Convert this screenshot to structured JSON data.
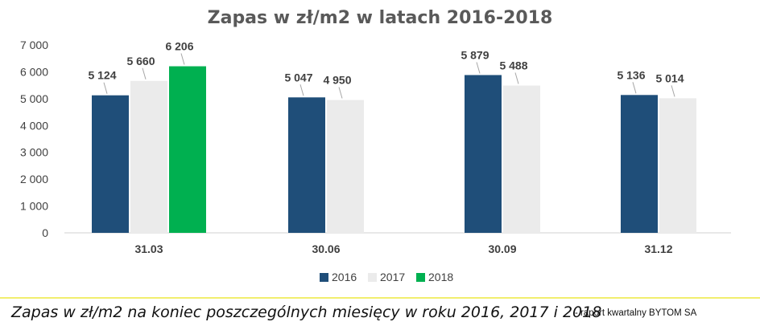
{
  "chart_data": {
    "type": "bar",
    "title": "Zapas w zł/m2 w latach 2016-2018",
    "categories": [
      "31.03",
      "30.06",
      "30.09",
      "31.12"
    ],
    "series": [
      {
        "name": "2016",
        "color": "#1f4e79",
        "values": [
          5124,
          5047,
          5879,
          5136
        ],
        "labels": [
          "5 124",
          "5 047",
          "5 879",
          "5 136"
        ]
      },
      {
        "name": "2017",
        "color": "#ebebeb",
        "values": [
          5660,
          4950,
          5488,
          5014
        ],
        "labels": [
          "5 660",
          "4 950",
          "5 488",
          "5 014"
        ]
      },
      {
        "name": "2018",
        "color": "#00b050",
        "values": [
          6206,
          null,
          null,
          null
        ],
        "labels": [
          "6 206",
          "",
          "",
          ""
        ]
      }
    ],
    "ylim": [
      0,
      7000
    ],
    "yticks": [
      0,
      1000,
      2000,
      3000,
      4000,
      5000,
      6000,
      7000
    ],
    "ytick_labels": [
      "0",
      "1 000",
      "2 000",
      "3 000",
      "4 000",
      "5 000",
      "6 000",
      "7 000"
    ],
    "grid": false,
    "legend": "bottom-center"
  },
  "caption": {
    "main": "Zapas w zł/m2 na koniec poszczególnych miesięcy w roku 2016, 2017 i 2018",
    "source": "- raport kwartalny BYTOM SA"
  }
}
